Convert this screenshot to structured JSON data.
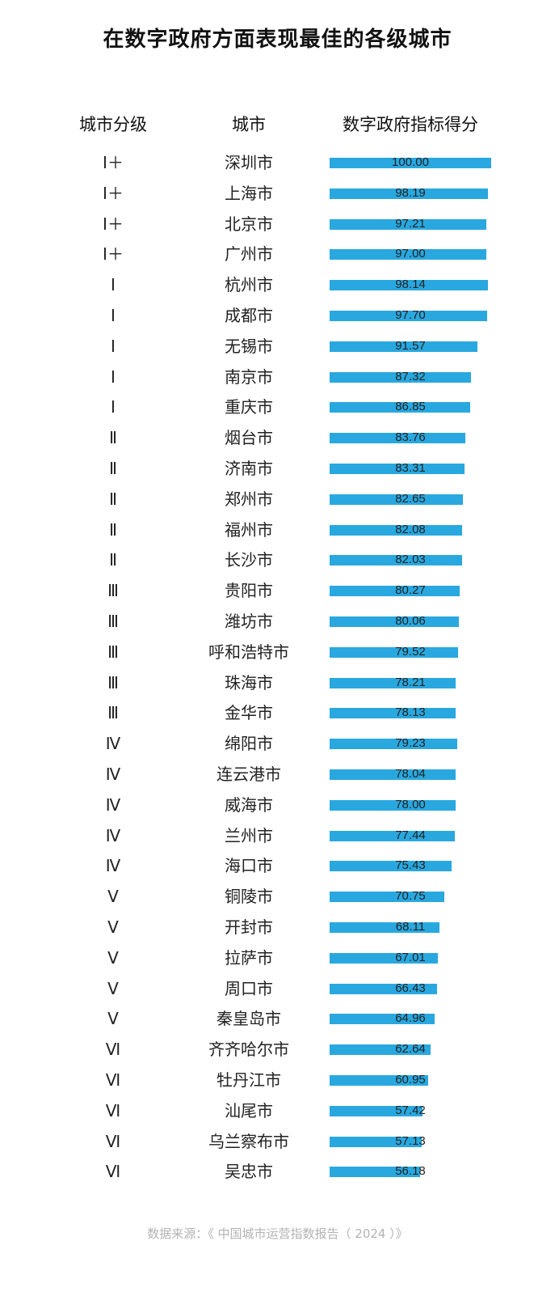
{
  "title": "在数字政府方面表现最佳的各级城市",
  "headers": {
    "grade": "城市分级",
    "city": "城市",
    "score": "数字政府指标得分"
  },
  "source": "数据来源：《 中国城市运营指数报告（ 2024 ）》",
  "colors": {
    "bar": "#29a8e0",
    "source_text": "#b3b3b3"
  },
  "chart_data": {
    "type": "bar",
    "orientation": "horizontal",
    "title": "在数字政府方面表现最佳的各级城市",
    "xlim": [
      0,
      100
    ],
    "series": [
      {
        "values": [
          100.0,
          98.19,
          97.21,
          97.0,
          98.14,
          97.7,
          91.57,
          87.32,
          86.85,
          83.76,
          83.31,
          82.65,
          82.08,
          82.03,
          80.27,
          80.06,
          79.52,
          78.21,
          78.13,
          79.23,
          78.04,
          78.0,
          77.44,
          75.43,
          70.75,
          68.11,
          67.01,
          66.43,
          64.96,
          62.64,
          60.95,
          57.42,
          57.13,
          56.18
        ]
      }
    ],
    "rows": [
      {
        "grade": "Ⅰ＋",
        "city": "深圳市",
        "score": "100.00"
      },
      {
        "grade": "Ⅰ＋",
        "city": "上海市",
        "score": "98.19"
      },
      {
        "grade": "Ⅰ＋",
        "city": "北京市",
        "score": "97.21"
      },
      {
        "grade": "Ⅰ＋",
        "city": "广州市",
        "score": "97.00"
      },
      {
        "grade": "Ⅰ",
        "city": "杭州市",
        "score": "98.14"
      },
      {
        "grade": "Ⅰ",
        "city": "成都市",
        "score": "97.70"
      },
      {
        "grade": "Ⅰ",
        "city": "无锡市",
        "score": "91.57"
      },
      {
        "grade": "Ⅰ",
        "city": "南京市",
        "score": "87.32"
      },
      {
        "grade": "Ⅰ",
        "city": "重庆市",
        "score": "86.85"
      },
      {
        "grade": "Ⅱ",
        "city": "烟台市",
        "score": "83.76"
      },
      {
        "grade": "Ⅱ",
        "city": "济南市",
        "score": "83.31"
      },
      {
        "grade": "Ⅱ",
        "city": "郑州市",
        "score": "82.65"
      },
      {
        "grade": "Ⅱ",
        "city": "福州市",
        "score": "82.08"
      },
      {
        "grade": "Ⅱ",
        "city": "长沙市",
        "score": "82.03"
      },
      {
        "grade": "Ⅲ",
        "city": "贵阳市",
        "score": "80.27"
      },
      {
        "grade": "Ⅲ",
        "city": "潍坊市",
        "score": "80.06"
      },
      {
        "grade": "Ⅲ",
        "city": "呼和浩特市",
        "score": "79.52"
      },
      {
        "grade": "Ⅲ",
        "city": "珠海市",
        "score": "78.21"
      },
      {
        "grade": "Ⅲ",
        "city": "金华市",
        "score": "78.13"
      },
      {
        "grade": "Ⅳ",
        "city": "绵阳市",
        "score": "79.23"
      },
      {
        "grade": "Ⅳ",
        "city": "连云港市",
        "score": "78.04"
      },
      {
        "grade": "Ⅳ",
        "city": "威海市",
        "score": "78.00"
      },
      {
        "grade": "Ⅳ",
        "city": "兰州市",
        "score": "77.44"
      },
      {
        "grade": "Ⅳ",
        "city": "海口市",
        "score": "75.43"
      },
      {
        "grade": "Ⅴ",
        "city": "铜陵市",
        "score": "70.75"
      },
      {
        "grade": "Ⅴ",
        "city": "开封市",
        "score": "68.11"
      },
      {
        "grade": "Ⅴ",
        "city": "拉萨市",
        "score": "67.01"
      },
      {
        "grade": "Ⅴ",
        "city": "周口市",
        "score": "66.43"
      },
      {
        "grade": "Ⅴ",
        "city": "秦皇岛市",
        "score": "64.96"
      },
      {
        "grade": "Ⅵ",
        "city": "齐齐哈尔市",
        "score": "62.64"
      },
      {
        "grade": "Ⅵ",
        "city": "牡丹江市",
        "score": "60.95"
      },
      {
        "grade": "Ⅵ",
        "city": "汕尾市",
        "score": "57.42"
      },
      {
        "grade": "Ⅵ",
        "city": "乌兰察布市",
        "score": "57.13"
      },
      {
        "grade": "Ⅵ",
        "city": "吴忠市",
        "score": "56.18"
      }
    ]
  }
}
